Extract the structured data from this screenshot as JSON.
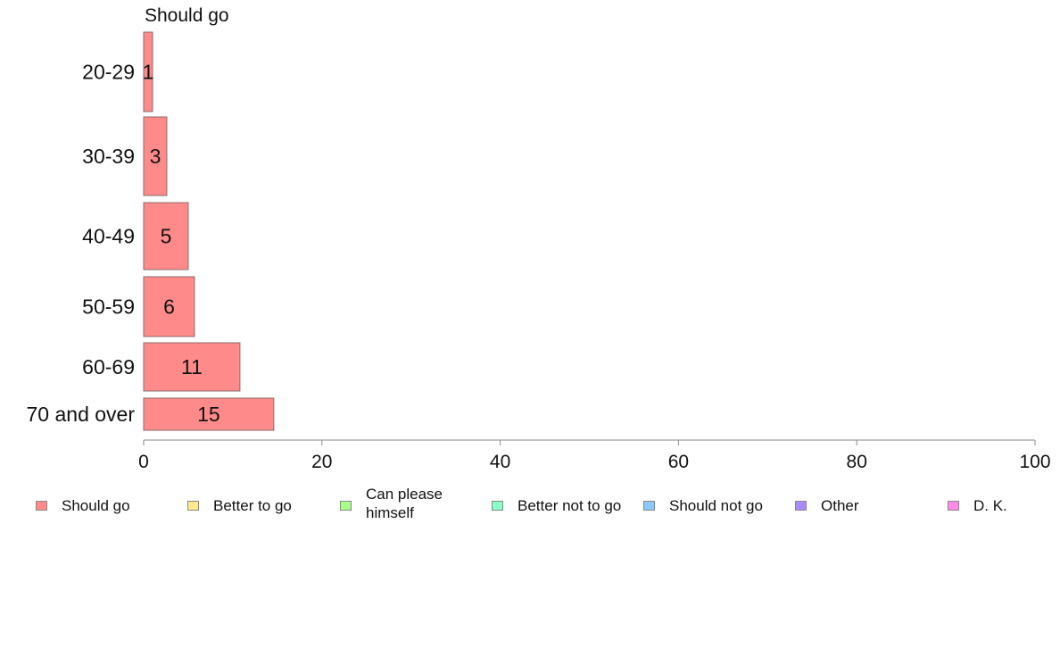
{
  "chart_data": {
    "type": "bar",
    "orientation": "horizontal",
    "title": "Should go",
    "categories": [
      "20-29",
      "30-39",
      "40-49",
      "50-59",
      "60-69",
      "70 and over"
    ],
    "series": [
      {
        "name": "Should go",
        "values": [
          1,
          3,
          5,
          6,
          11,
          15
        ],
        "data_labels": [
          1,
          2.6,
          5,
          5.7,
          10.8,
          14.6
        ]
      }
    ],
    "xlim": [
      0,
      100
    ],
    "xticks": [
      "0",
      "20",
      "40",
      "60",
      "80",
      "100"
    ],
    "xlabel": "",
    "ylabel": "",
    "grid": false,
    "legend": {
      "placement": "bottom",
      "entries": [
        {
          "label": "Should go",
          "color": "#ff8a8a"
        },
        {
          "label": "Better to go",
          "color": "#ffe98a"
        },
        {
          "label": "Can please himself",
          "color": "#a9ff8a"
        },
        {
          "label": "Better not to go",
          "color": "#8affc8"
        },
        {
          "label": "Should not go",
          "color": "#8ac8ff"
        },
        {
          "label": "Other",
          "color": "#a98aff"
        },
        {
          "label": "D. K.",
          "color": "#ff8ae9"
        }
      ]
    }
  }
}
